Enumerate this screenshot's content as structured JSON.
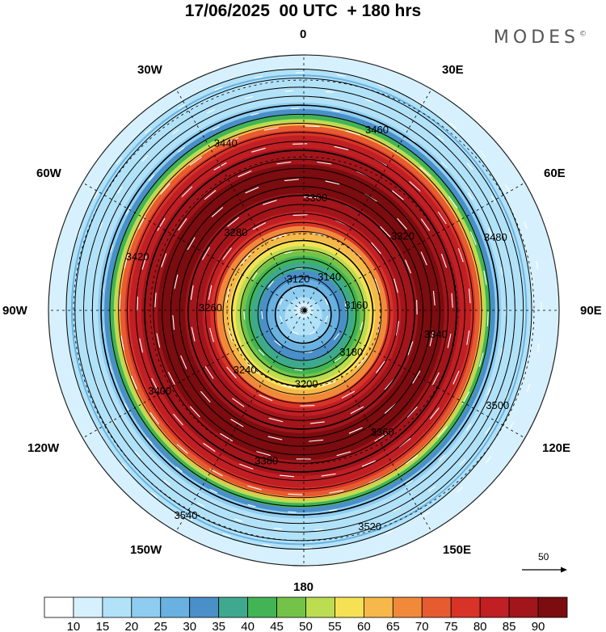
{
  "title": "17/06/2025  00 UTC  + 180 hrs",
  "brand": "MODES",
  "brand_mark": "©",
  "longitude_labels": {
    "l0": "0",
    "l30e": "30E",
    "l60e": "60E",
    "l90e": "90E",
    "l120e": "120E",
    "l150e": "150E",
    "l180": "180",
    "l150w": "150W",
    "l120w": "120W",
    "l90w": "90W",
    "l60w": "60W",
    "l30w": "30W"
  },
  "contour_labels": [
    "3120",
    "3140",
    "3160",
    "3180",
    "3200",
    "3240",
    "3260",
    "3280",
    "3300",
    "3320",
    "3340",
    "3360",
    "3380",
    "3400",
    "3420",
    "3440",
    "3460",
    "3480",
    "3500",
    "3520",
    "3540"
  ],
  "reference_vector": {
    "label": "50"
  },
  "colorbar": {
    "ticks": [
      "10",
      "15",
      "20",
      "25",
      "30",
      "35",
      "40",
      "45",
      "50",
      "55",
      "60",
      "65",
      "70",
      "75",
      "80",
      "85",
      "90"
    ],
    "colors": [
      "#ffffff",
      "#d6f1fd",
      "#b2e2f8",
      "#8fcdf0",
      "#68b1e1",
      "#4a8fc8",
      "#3ea98f",
      "#42b455",
      "#73c348",
      "#bcdd51",
      "#f6e155",
      "#f6b84a",
      "#f08a3a",
      "#e65b30",
      "#d83328",
      "#c01f24",
      "#a1151b",
      "#7b0c0f"
    ]
  },
  "chart_data": {
    "type": "polar-stereographic-map",
    "projection": "polar stereographic, south pole centered",
    "valid_time": "17/06/2025 00 UTC",
    "forecast_hour": 180,
    "shaded_field": "wind speed",
    "shading_levels": [
      10,
      15,
      20,
      25,
      30,
      35,
      40,
      45,
      50,
      55,
      60,
      65,
      70,
      75,
      80,
      85,
      90
    ],
    "contour_field": "geopotential height",
    "contour_interval": 20,
    "contour_labelled_values": [
      3120,
      3140,
      3160,
      3180,
      3200,
      3240,
      3260,
      3280,
      3300,
      3320,
      3340,
      3360,
      3380,
      3400,
      3420,
      3440,
      3460,
      3480,
      3500,
      3520,
      3540
    ],
    "vectors": "wind",
    "reference_vector": 50,
    "meridians": [
      "0",
      "30E",
      "60E",
      "90E",
      "120E",
      "150E",
      "180",
      "150W",
      "120W",
      "90W",
      "60W",
      "30W"
    ]
  }
}
